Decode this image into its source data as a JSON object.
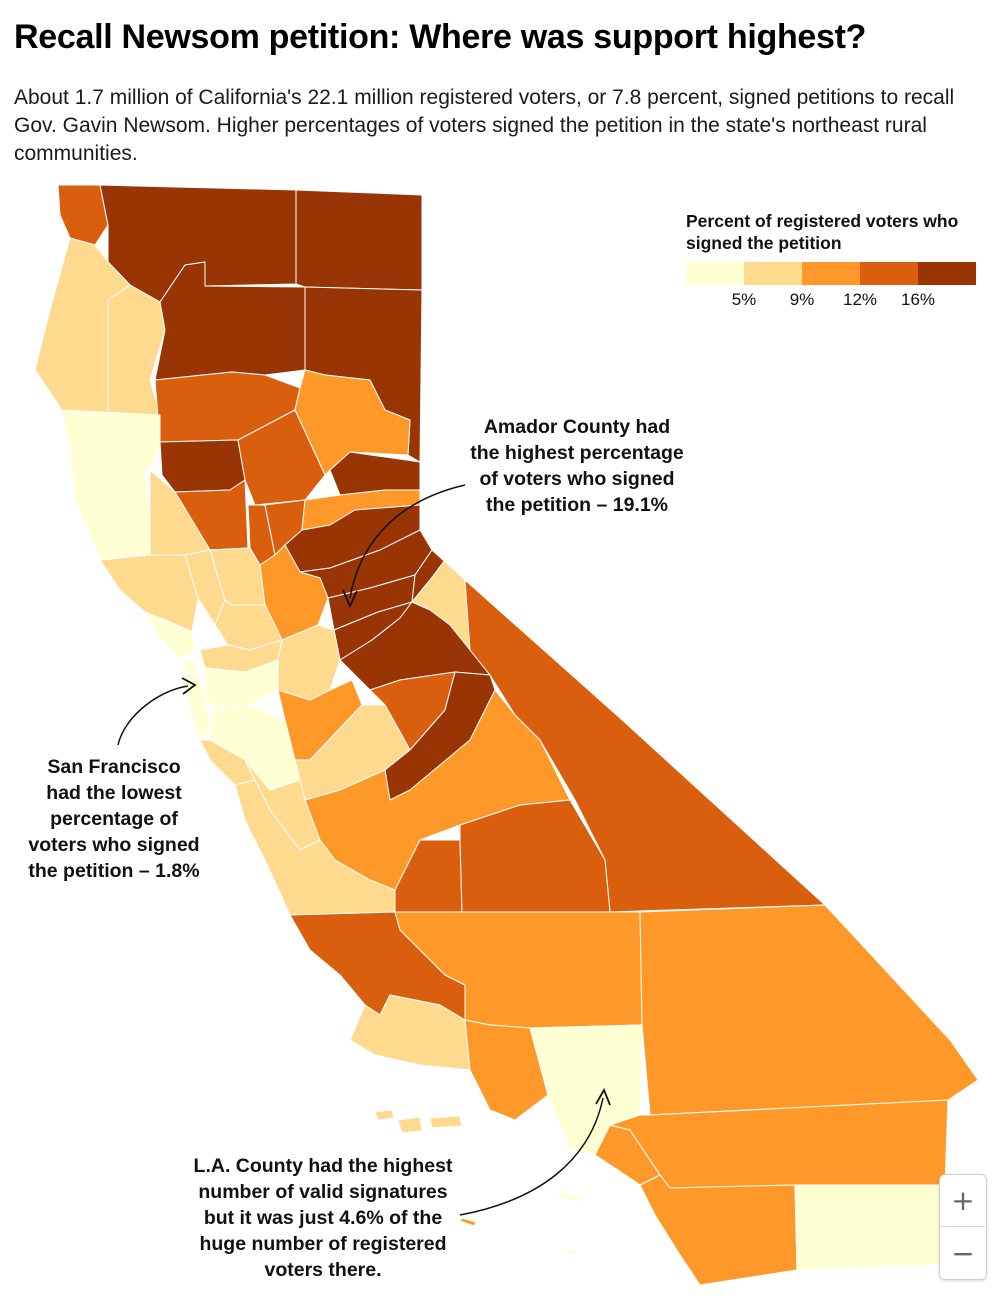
{
  "header": {
    "title": "Recall Newsom petition: Where was support highest?",
    "subtitle": "About 1.7 million of California's 22.1 million registered voters, or 7.8 percent, signed petitions to recall Gov. Gavin Newsom. Higher percentages of voters signed the petition in the state's northeast rural communities."
  },
  "legend": {
    "title": "Percent of registered voters who signed the petition",
    "colors": [
      "#ffffd4",
      "#fed98e",
      "#fe9929",
      "#d95f0e",
      "#993404"
    ],
    "ticks": [
      "5%",
      "9%",
      "12%",
      "16%"
    ]
  },
  "annotations": {
    "amador": "Amador County had the highest percentage of voters who signed the petition – 19.1%",
    "san_francisco": "San Francisco had the lowest percentage of voters who signed the petition – 1.8%",
    "los_angeles": "L.A. County had the highest number of valid signatures but it was just 4.6% of the huge number of registered voters there."
  },
  "map": {
    "highlights": {
      "Amador": 19.1,
      "San Francisco": 1.8,
      "Los Angeles": 4.6
    }
  },
  "zoom": {
    "in_label": "+",
    "out_label": "−"
  }
}
